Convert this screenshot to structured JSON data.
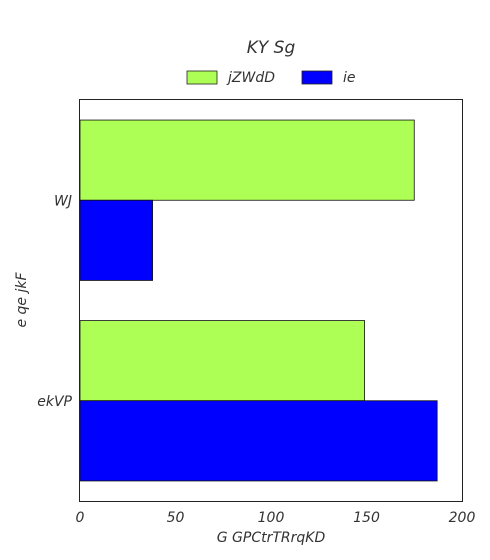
{
  "chart_data": {
    "type": "bar",
    "orientation": "horizontal",
    "title": "KY Sg",
    "xlabel": "G GPCtrTRrqKD",
    "ylabel": "e qe jkF",
    "categories": [
      "WJ",
      "ekVP"
    ],
    "series": [
      {
        "name": "jZWdD",
        "color": "#adff55",
        "values": [
          175,
          149
        ]
      },
      {
        "name": "ie",
        "color": "#0000ff",
        "values": [
          38,
          187
        ]
      }
    ],
    "xlim": [
      0,
      200
    ],
    "xticks": [
      0,
      50,
      100,
      150,
      200
    ],
    "grid": false,
    "legend_position": "top-center"
  }
}
